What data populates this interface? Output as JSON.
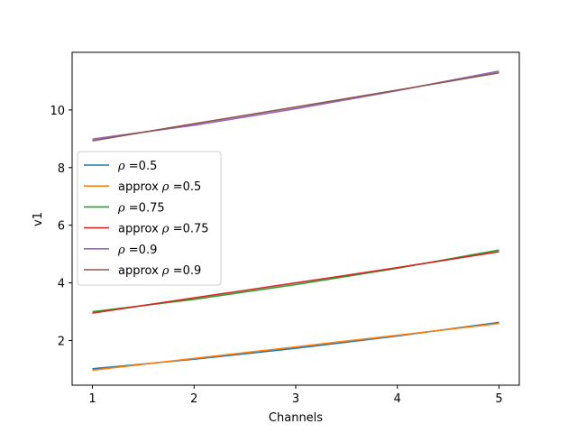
{
  "chart_data": {
    "type": "line",
    "title": "",
    "xlabel": "Channels",
    "ylabel": "v1",
    "xlim": [
      0.8,
      5.2
    ],
    "ylim": [
      0.45,
      12.0
    ],
    "xticks": [
      1,
      2,
      3,
      4,
      5
    ],
    "yticks": [
      2,
      4,
      6,
      8,
      10
    ],
    "grid": false,
    "legend_position": "center-left",
    "series": [
      {
        "name": "ρ =0.5",
        "prefix": "",
        "rho": "0.5",
        "color": "#1f77b4",
        "x": [
          1,
          2,
          3,
          4,
          5
        ],
        "y": [
          1.02,
          1.35,
          1.73,
          2.16,
          2.63
        ]
      },
      {
        "name": "approx ρ =0.5",
        "prefix": "approx ",
        "rho": "0.5",
        "color": "#ff7f0e",
        "x": [
          1,
          2,
          3,
          4,
          5
        ],
        "y": [
          0.97,
          1.38,
          1.78,
          2.18,
          2.59
        ]
      },
      {
        "name": "ρ =0.75",
        "prefix": "",
        "rho": "0.75",
        "color": "#2ca02c",
        "x": [
          1,
          2,
          3,
          4,
          5
        ],
        "y": [
          3.0,
          3.43,
          3.94,
          4.51,
          5.14
        ]
      },
      {
        "name": "approx ρ =0.75",
        "prefix": "approx ",
        "rho": "0.75",
        "color": "#d62728",
        "x": [
          1,
          2,
          3,
          4,
          5
        ],
        "y": [
          2.95,
          3.48,
          4.0,
          4.53,
          5.08
        ]
      },
      {
        "name": "ρ =0.9",
        "prefix": "",
        "rho": "0.9",
        "color": "#9467bd",
        "x": [
          1,
          2,
          3,
          4,
          5
        ],
        "y": [
          8.99,
          9.47,
          10.04,
          10.67,
          11.35
        ]
      },
      {
        "name": "approx ρ =0.9",
        "prefix": "approx ",
        "rho": "0.9",
        "color": "#8c564b",
        "x": [
          1,
          2,
          3,
          4,
          5
        ],
        "y": [
          8.93,
          9.52,
          10.1,
          10.69,
          11.29
        ]
      }
    ]
  }
}
